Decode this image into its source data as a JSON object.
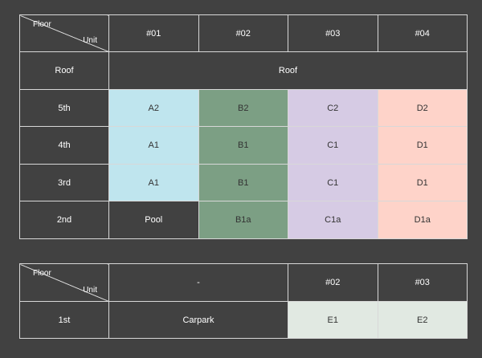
{
  "upper": {
    "corner": {
      "floor": "Floor",
      "unit": "Unit"
    },
    "columns": [
      "#01",
      "#02",
      "#03",
      "#04"
    ],
    "roof_row": {
      "label": "Roof",
      "value": "Roof"
    },
    "rows": [
      {
        "floor": "5th",
        "cells": [
          "A2",
          "B2",
          "C2",
          "D2"
        ]
      },
      {
        "floor": "4th",
        "cells": [
          "A1",
          "B1",
          "C1",
          "D1"
        ]
      },
      {
        "floor": "3rd",
        "cells": [
          "A1",
          "B1",
          "C1",
          "D1"
        ]
      },
      {
        "floor": "2nd",
        "cells": [
          "Pool",
          "B1a",
          "C1a",
          "D1a"
        ]
      }
    ]
  },
  "lower": {
    "corner": {
      "floor": "Floor",
      "unit": "Unit"
    },
    "columns": [
      "-",
      "#02",
      "#03"
    ],
    "rows": [
      {
        "floor": "1st",
        "cells": [
          "Carpark",
          "E1",
          "E2"
        ]
      }
    ]
  },
  "colors": {
    "background": "#414141",
    "unit_a": "#bfe5ee",
    "unit_b": "#7c9f84",
    "unit_c": "#d6cbe4",
    "unit_d": "#fed3c9",
    "unit_e": "#e1e9e2",
    "border": "#d8d8d8"
  }
}
